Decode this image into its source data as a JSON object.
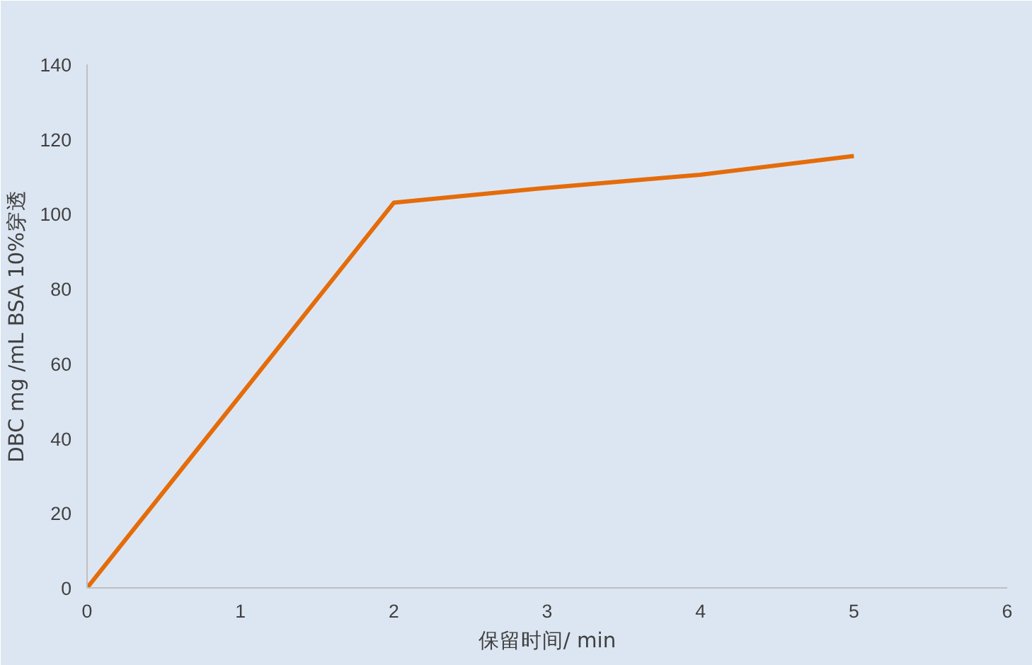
{
  "chart_data": {
    "type": "line",
    "xlabel": "保留时间/ min",
    "ylabel": "DBC mg /mL BSA 10%穿透",
    "x": [
      0,
      1,
      2,
      3,
      4,
      5
    ],
    "series": [
      {
        "color": "#e46c0a",
        "values": [
          0,
          51.5,
          103,
          107,
          110.5,
          115.5
        ]
      }
    ],
    "xlim": [
      0,
      6
    ],
    "xticks": [
      0,
      1,
      2,
      3,
      4,
      5,
      6
    ],
    "ylim": [
      0,
      140
    ],
    "yticks": [
      0,
      20,
      40,
      60,
      80,
      100,
      120,
      140
    ],
    "grid": false,
    "marker": "none",
    "line_style": "solid"
  }
}
